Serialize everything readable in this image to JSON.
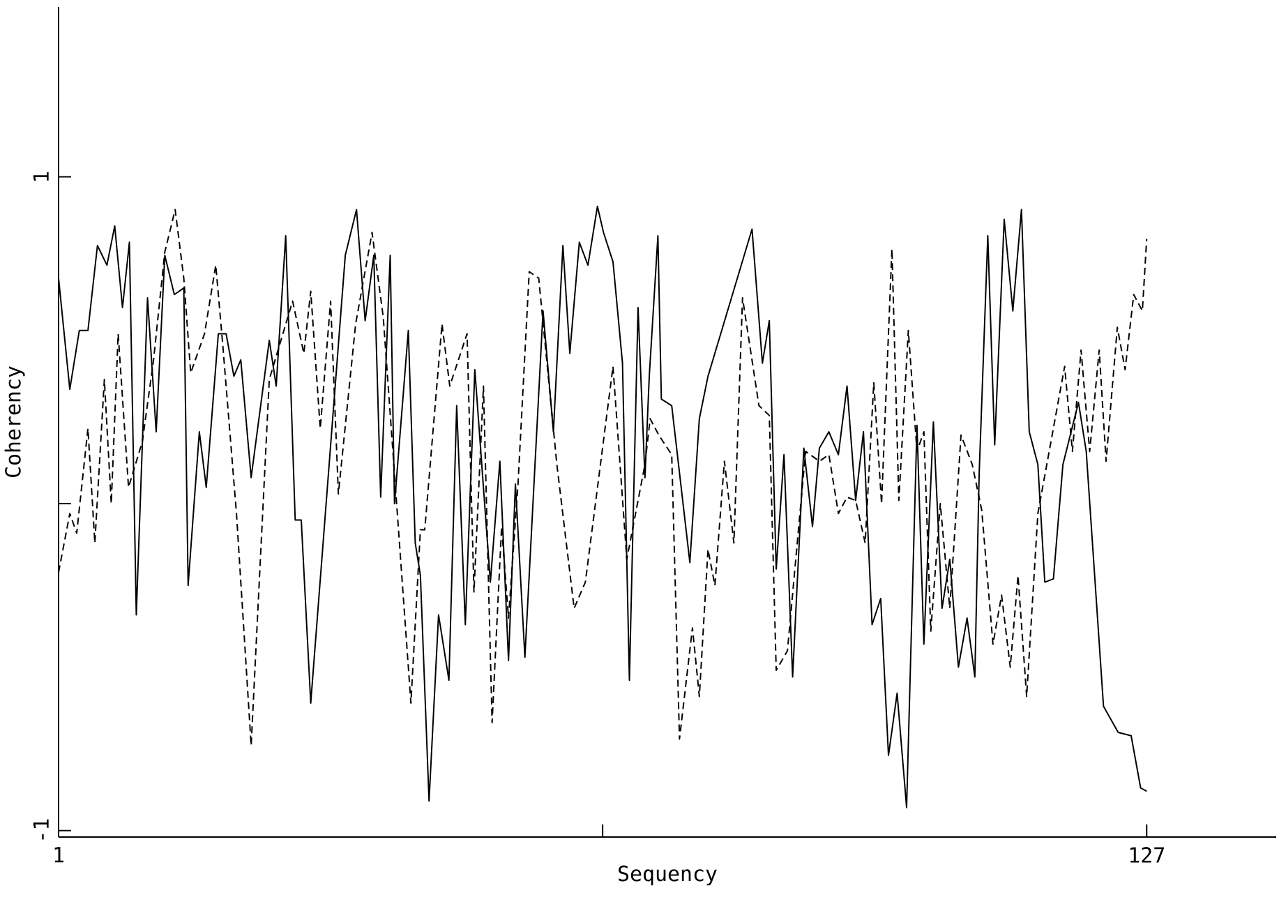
{
  "chart_data": {
    "type": "line",
    "xlabel": "Sequency",
    "ylabel": "Coherency",
    "xlim": [
      1,
      142
    ],
    "ylim": [
      -1.02,
      1.52
    ],
    "xticks": [
      1,
      {
        "value": 64,
        "label": null
      },
      127
    ],
    "yticks": [
      -1,
      {
        "value": 0,
        "label": null
      },
      1
    ],
    "series": [
      {
        "color": "#000000",
        "line_style": "solid",
        "x": [
          1,
          2.3,
          3.4,
          4.4,
          5.5,
          6.6,
          7.5,
          8.4,
          9.2,
          10.0,
          11.3,
          12.3,
          13.3,
          14.4,
          15.5,
          16.0,
          17.3,
          18.1,
          19.5,
          20.4,
          21.3,
          22.1,
          23.3,
          25.4,
          26.2,
          27.3,
          28.4,
          29.1,
          30.2,
          34.2,
          35.5,
          36.5,
          37.5,
          38.3,
          39.4,
          39.9,
          41.5,
          42.3,
          42.9,
          43.9,
          45.0,
          46.2,
          47.1,
          48.1,
          49.2,
          51.0,
          52.1,
          53.1,
          53.9,
          55.0,
          57.1,
          58.3,
          59.4,
          60.2,
          61.3,
          62.3,
          63.4,
          64.1,
          65.2,
          66.3,
          67.1,
          68.1,
          68.9,
          69.4,
          70.4,
          70.8,
          72.0,
          74.1,
          75.2,
          76.2,
          81.3,
          82.5,
          83.3,
          84.1,
          85.0,
          86.0,
          87.3,
          88.3,
          89.1,
          90.2,
          91.3,
          92.3,
          93.3,
          94.2,
          95.2,
          96.2,
          97.1,
          98.1,
          99.2,
          100.4,
          101.2,
          102.3,
          103.3,
          104.2,
          105.2,
          106.2,
          107.1,
          107.6,
          108.6,
          109.4,
          110.5,
          111.5,
          112.5,
          113.4,
          114.4,
          115.2,
          116.2,
          117.3,
          119.1,
          120.0,
          122.0,
          123.7,
          125.2,
          126.3,
          127
        ],
        "values": [
          0.69,
          0.35,
          0.53,
          0.53,
          0.79,
          0.73,
          0.85,
          0.6,
          0.8,
          -0.34,
          0.63,
          0.22,
          0.76,
          0.64,
          0.66,
          -0.25,
          0.22,
          0.05,
          0.52,
          0.52,
          0.39,
          0.44,
          0.08,
          0.5,
          0.36,
          0.82,
          -0.05,
          -0.05,
          -0.61,
          0.76,
          0.9,
          0.56,
          0.76,
          0.02,
          0.76,
          0.0,
          0.53,
          -0.12,
          -0.22,
          -0.91,
          -0.34,
          -0.54,
          0.3,
          -0.37,
          0.41,
          -0.24,
          0.13,
          -0.48,
          0.06,
          -0.47,
          0.59,
          0.22,
          0.79,
          0.46,
          0.8,
          0.73,
          0.91,
          0.83,
          0.74,
          0.43,
          -0.54,
          0.6,
          0.08,
          0.39,
          0.82,
          0.32,
          0.3,
          -0.18,
          0.26,
          0.39,
          0.84,
          0.43,
          0.56,
          -0.2,
          0.15,
          -0.53,
          0.17,
          -0.07,
          0.17,
          0.22,
          0.15,
          0.36,
          0.01,
          0.22,
          -0.37,
          -0.29,
          -0.77,
          -0.58,
          -0.93,
          0.24,
          -0.43,
          0.25,
          -0.32,
          -0.17,
          -0.5,
          -0.35,
          -0.53,
          0.09,
          0.82,
          0.18,
          0.87,
          0.59,
          0.9,
          0.22,
          0.12,
          -0.24,
          -0.23,
          0.12,
          0.31,
          0.16,
          -0.62,
          -0.7,
          -0.71,
          -0.87,
          -0.88
        ]
      },
      {
        "color": "#000000",
        "line_style": "dashed",
        "x": [
          1,
          2.3,
          3.1,
          4.4,
          5.2,
          6.3,
          7.1,
          7.9,
          9.1,
          10.7,
          12.0,
          13.3,
          14.5,
          15.5,
          16.3,
          17.9,
          19.2,
          20.0,
          21.6,
          23.3,
          25.4,
          28.1,
          29.4,
          30.2,
          31.3,
          32.5,
          33.4,
          35.4,
          37.3,
          38.6,
          41.8,
          42.9,
          43.4,
          45.4,
          46.3,
          48.3,
          49.1,
          50.2,
          51.2,
          52.3,
          53.1,
          54.2,
          55.5,
          56.6,
          58.7,
          60.7,
          62.0,
          65.2,
          66.8,
          68.9,
          69.5,
          70.5,
          72.0,
          72.9,
          74.4,
          75.2,
          76.2,
          77.0,
          78.1,
          79.2,
          80.2,
          82.1,
          83.3,
          84.1,
          85.4,
          87.5,
          89.1,
          90.2,
          91.3,
          92.3,
          93.3,
          94.4,
          95.4,
          96.3,
          97.5,
          98.3,
          99.4,
          100.4,
          101.2,
          102.0,
          103.1,
          104.2,
          105.5,
          106.8,
          107.9,
          109.2,
          110.2,
          111.2,
          112.1,
          113.1,
          114.4,
          117.5,
          118.4,
          119.4,
          120.4,
          121.5,
          122.3,
          123.6,
          124.5,
          125.5,
          126.5,
          127
        ],
        "values": [
          -0.21,
          -0.03,
          -0.09,
          0.23,
          -0.12,
          0.38,
          0.0,
          0.52,
          0.05,
          0.19,
          0.44,
          0.77,
          0.9,
          0.69,
          0.4,
          0.52,
          0.73,
          0.49,
          -0.03,
          -0.74,
          0.38,
          0.62,
          0.46,
          0.65,
          0.23,
          0.62,
          0.03,
          0.55,
          0.83,
          0.57,
          -0.61,
          -0.08,
          -0.08,
          0.55,
          0.36,
          0.52,
          -0.27,
          0.36,
          -0.67,
          -0.07,
          -0.35,
          0.06,
          0.71,
          0.69,
          0.12,
          -0.32,
          -0.24,
          0.42,
          -0.17,
          0.12,
          0.26,
          0.21,
          0.15,
          -0.72,
          -0.38,
          -0.59,
          -0.14,
          -0.25,
          0.13,
          -0.12,
          0.63,
          0.3,
          0.27,
          -0.51,
          -0.45,
          0.16,
          0.13,
          0.15,
          -0.03,
          0.02,
          0.01,
          -0.12,
          0.37,
          0.0,
          0.78,
          0.01,
          0.53,
          0.16,
          0.22,
          -0.39,
          0.0,
          -0.32,
          0.21,
          0.12,
          -0.02,
          -0.43,
          -0.28,
          -0.5,
          -0.22,
          -0.59,
          -0.03,
          0.42,
          0.16,
          0.47,
          0.16,
          0.47,
          0.13,
          0.54,
          0.41,
          0.64,
          0.59,
          0.81
        ]
      }
    ]
  }
}
